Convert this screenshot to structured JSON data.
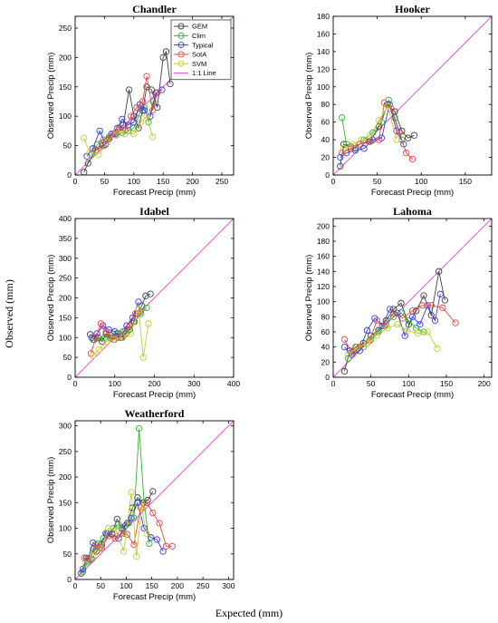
{
  "figure": {
    "ylabel": "Observed (mm)",
    "xlabel": "Expected (mm)"
  },
  "series_styles": [
    {
      "name": "GEM",
      "color": "#404040"
    },
    {
      "name": "Clim",
      "color": "#33b533"
    },
    {
      "name": "Typical",
      "color": "#3a3ae0"
    },
    {
      "name": "SotA",
      "color": "#e84545"
    },
    {
      "name": "SVM",
      "color": "#c8c832"
    },
    {
      "name": "1:1 Line",
      "color": "#e655e6"
    }
  ],
  "chart_data": [
    {
      "type": "line",
      "title": "Chandler",
      "xlabel": "Forecast Precip (mm)",
      "ylabel": "Observed Precip (mm)",
      "xlim": [
        0,
        270
      ],
      "ylim": [
        0,
        270
      ],
      "xticks": [
        0,
        50,
        100,
        150,
        200,
        250
      ],
      "yticks": [
        0,
        50,
        100,
        150,
        200,
        250
      ],
      "legend": "top-right",
      "series": [
        {
          "name": "GEM",
          "x": [
            15,
            22,
            35,
            48,
            58,
            68,
            75,
            82,
            92,
            100,
            108,
            115,
            122,
            130,
            140,
            150,
            155,
            162
          ],
          "y": [
            5,
            20,
            42,
            50,
            62,
            70,
            80,
            85,
            145,
            100,
            80,
            110,
            150,
            145,
            115,
            200,
            210,
            155
          ]
        },
        {
          "name": "Clim",
          "x": [
            28,
            38,
            48,
            58,
            70,
            80,
            90,
            100,
            110,
            118,
            125,
            133,
            140
          ],
          "y": [
            35,
            52,
            60,
            65,
            68,
            72,
            75,
            80,
            105,
            115,
            90,
            125,
            140
          ]
        },
        {
          "name": "Typical",
          "x": [
            20,
            30,
            42,
            52,
            62,
            72,
            80,
            90,
            100,
            110,
            118,
            128,
            138,
            148
          ],
          "y": [
            32,
            45,
            75,
            52,
            70,
            80,
            95,
            85,
            90,
            120,
            110,
            100,
            140,
            145
          ]
        },
        {
          "name": "SotA",
          "x": [
            35,
            45,
            55,
            65,
            75,
            85,
            95,
            105,
            115,
            122,
            132,
            140
          ],
          "y": [
            42,
            55,
            60,
            70,
            80,
            75,
            100,
            115,
            125,
            168,
            110,
            140
          ]
        },
        {
          "name": "SVM",
          "x": [
            15,
            25,
            40,
            55,
            70,
            85,
            100,
            112,
            122,
            132
          ],
          "y": [
            63,
            38,
            35,
            55,
            75,
            70,
            70,
            90,
            100,
            65
          ]
        }
      ]
    },
    {
      "type": "line",
      "title": "Hooker",
      "xlabel": "Forecast Precip (mm)",
      "ylabel": "Observed Precip (mm)",
      "xlim": [
        0,
        180
      ],
      "ylim": [
        0,
        180
      ],
      "xticks": [
        0,
        50,
        100,
        150
      ],
      "yticks": [
        0,
        20,
        40,
        60,
        80,
        100,
        120,
        140,
        160,
        180
      ],
      "series": [
        {
          "name": "GEM",
          "x": [
            8,
            12,
            20,
            30,
            42,
            52,
            62,
            70,
            78,
            85,
            92
          ],
          "y": [
            10,
            35,
            32,
            35,
            38,
            55,
            80,
            72,
            50,
            42,
            45
          ]
        },
        {
          "name": "Clim",
          "x": [
            10,
            15,
            25,
            35,
            45,
            55,
            63,
            70,
            78
          ],
          "y": [
            65,
            35,
            30,
            40,
            48,
            60,
            85,
            65,
            40
          ]
        },
        {
          "name": "Typical",
          "x": [
            8,
            15,
            25,
            35,
            45,
            55,
            64,
            72,
            80
          ],
          "y": [
            20,
            25,
            28,
            30,
            40,
            42,
            80,
            50,
            35
          ]
        },
        {
          "name": "SotA",
          "x": [
            10,
            20,
            30,
            40,
            52,
            58,
            66,
            75,
            83,
            90
          ],
          "y": [
            25,
            30,
            35,
            38,
            40,
            82,
            75,
            48,
            25,
            18
          ]
        },
        {
          "name": "SVM",
          "x": [
            12,
            22,
            32,
            42,
            52,
            62,
            72
          ],
          "y": [
            30,
            35,
            40,
            45,
            62,
            78,
            40
          ]
        }
      ]
    },
    {
      "type": "line",
      "title": "Idabel",
      "xlabel": "Forecast Precip (mm)",
      "ylabel": "Observed Precip (mm)",
      "xlim": [
        0,
        400
      ],
      "ylim": [
        0,
        400
      ],
      "xticks": [
        0,
        100,
        200,
        300,
        400
      ],
      "yticks": [
        0,
        50,
        100,
        150,
        200,
        250,
        300,
        350,
        400
      ],
      "series": [
        {
          "name": "GEM",
          "x": [
            38,
            48,
            58,
            68,
            78,
            88,
            98,
            108,
            118,
            128,
            138,
            148,
            158,
            168,
            178,
            190
          ],
          "y": [
            108,
            95,
            100,
            90,
            110,
            100,
            95,
            110,
            100,
            110,
            120,
            140,
            160,
            180,
            205,
            210
          ]
        },
        {
          "name": "Clim",
          "x": [
            45,
            60,
            75,
            90,
            105,
            120,
            135,
            150,
            165,
            180
          ],
          "y": [
            95,
            98,
            100,
            105,
            110,
            115,
            120,
            140,
            160,
            175
          ]
        },
        {
          "name": "Typical",
          "x": [
            42,
            55,
            70,
            85,
            100,
            115,
            130,
            145,
            160
          ],
          "y": [
            100,
            110,
            130,
            120,
            115,
            100,
            130,
            150,
            190
          ]
        },
        {
          "name": "SotA",
          "x": [
            40,
            52,
            65,
            78,
            92,
            108,
            122,
            138,
            152,
            165
          ],
          "y": [
            60,
            100,
            135,
            115,
            100,
            100,
            105,
            130,
            160,
            165
          ]
        },
        {
          "name": "SVM",
          "x": [
            45,
            60,
            80,
            100,
            120,
            140,
            160,
            172,
            185
          ],
          "y": [
            55,
            70,
            90,
            95,
            100,
            110,
            170,
            50,
            135
          ]
        }
      ]
    },
    {
      "type": "line",
      "title": "Lahoma",
      "xlabel": "Forecast Precip (mm)",
      "ylabel": "Observed Precip (mm)",
      "xlim": [
        0,
        210
      ],
      "ylim": [
        0,
        210
      ],
      "xticks": [
        0,
        50,
        100,
        150,
        200
      ],
      "yticks": [
        0,
        20,
        40,
        60,
        80,
        100,
        120,
        140,
        160,
        180,
        200
      ],
      "series": [
        {
          "name": "GEM",
          "x": [
            15,
            22,
            30,
            40,
            50,
            60,
            70,
            80,
            90,
            100,
            110,
            120,
            130,
            140,
            148
          ],
          "y": [
            8,
            35,
            40,
            45,
            55,
            62,
            75,
            90,
            98,
            70,
            88,
            108,
            82,
            140,
            102
          ]
        },
        {
          "name": "Clim",
          "x": [
            20,
            30,
            40,
            50,
            60,
            70,
            80,
            90,
            100,
            110,
            120
          ],
          "y": [
            25,
            35,
            40,
            50,
            60,
            70,
            80,
            85,
            75,
            65,
            60
          ]
        },
        {
          "name": "Typical",
          "x": [
            15,
            25,
            35,
            45,
            55,
            65,
            75,
            85,
            95,
            105,
            115,
            125,
            135,
            142
          ],
          "y": [
            40,
            30,
            35,
            62,
            78,
            68,
            90,
            85,
            55,
            80,
            70,
            95,
            75,
            110
          ]
        },
        {
          "name": "SotA",
          "x": [
            15,
            25,
            35,
            48,
            58,
            68,
            80,
            92,
            105,
            118,
            130,
            145,
            162
          ],
          "y": [
            50,
            32,
            40,
            48,
            75,
            68,
            85,
            78,
            88,
            95,
            95,
            92,
            72
          ]
        },
        {
          "name": "SVM",
          "x": [
            20,
            32,
            45,
            58,
            72,
            85,
            98,
            112,
            125,
            138
          ],
          "y": [
            30,
            40,
            45,
            55,
            65,
            70,
            62,
            58,
            60,
            38
          ]
        }
      ]
    },
    {
      "type": "line",
      "title": "Weatherford",
      "xlabel": "Forecast Precip (mm)",
      "ylabel": "Observed Precip (mm)",
      "xlim": [
        0,
        310
      ],
      "ylim": [
        0,
        310
      ],
      "xticks": [
        0,
        50,
        100,
        150,
        200,
        250,
        300
      ],
      "yticks": [
        0,
        50,
        100,
        150,
        200,
        250,
        300
      ],
      "series": [
        {
          "name": "GEM",
          "x": [
            12,
            22,
            32,
            42,
            52,
            62,
            72,
            82,
            92,
            102,
            112,
            122,
            132,
            142,
            152
          ],
          "y": [
            12,
            42,
            40,
            55,
            68,
            88,
            90,
            118,
            100,
            110,
            140,
            160,
            150,
            155,
            172
          ]
        },
        {
          "name": "Clim",
          "x": [
            15,
            25,
            35,
            45,
            55,
            65,
            75,
            85,
            95,
            105,
            115,
            125,
            135,
            145
          ],
          "y": [
            15,
            35,
            60,
            70,
            80,
            90,
            100,
            108,
            90,
            110,
            120,
            295,
            150,
            70
          ]
        },
        {
          "name": "Typical",
          "x": [
            15,
            25,
            35,
            48,
            60,
            72,
            85,
            98,
            110,
            122,
            135,
            148,
            160,
            172
          ],
          "y": [
            20,
            40,
            72,
            62,
            90,
            88,
            80,
            105,
            120,
            150,
            100,
            82,
            78,
            55
          ]
        },
        {
          "name": "SotA",
          "x": [
            18,
            28,
            40,
            52,
            65,
            78,
            90,
            102,
            115,
            128,
            140,
            152,
            165,
            178,
            190
          ],
          "y": [
            42,
            38,
            68,
            62,
            85,
            80,
            90,
            88,
            68,
            140,
            150,
            130,
            110,
            65,
            65
          ]
        },
        {
          "name": "SVM",
          "x": [
            20,
            35,
            50,
            65,
            80,
            95,
            110,
            120,
            130,
            140
          ],
          "y": [
            30,
            45,
            60,
            100,
            95,
            55,
            170,
            45,
            140,
            90
          ]
        }
      ]
    }
  ]
}
